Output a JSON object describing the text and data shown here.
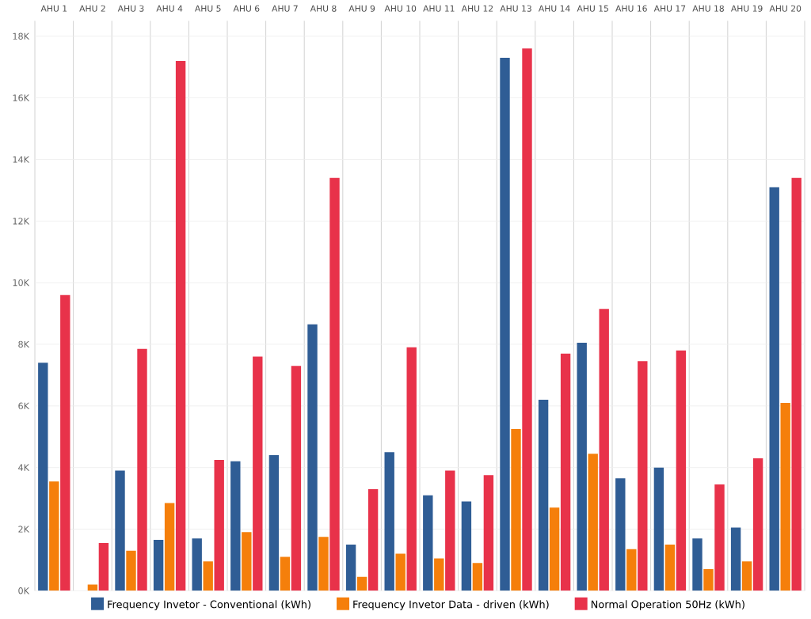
{
  "chart_data": {
    "type": "bar",
    "categories": [
      "AHU 1",
      "AHU 2",
      "AHU 3",
      "AHU 4",
      "AHU 5",
      "AHU 6",
      "AHU 7",
      "AHU 8",
      "AHU 9",
      "AHU 10",
      "AHU 11",
      "AHU 12",
      "AHU 13",
      "AHU 14",
      "AHU 15",
      "AHU 16",
      "AHU 17",
      "AHU 18",
      "AHU 19",
      "AHU 20"
    ],
    "series": [
      {
        "name": "Frequency Invetor - Conventional (kWh)",
        "color": "#2f5d95",
        "values": [
          7400,
          null,
          3900,
          1650,
          1700,
          4200,
          4400,
          8650,
          1500,
          4500,
          3100,
          2900,
          17300,
          6200,
          8050,
          3650,
          4000,
          1700,
          2050,
          13100
        ]
      },
      {
        "name": "Frequency Invetor Data - driven (kWh)",
        "color": "#f57f0b",
        "values": [
          3550,
          200,
          1300,
          2850,
          950,
          1900,
          1100,
          1750,
          450,
          1200,
          1050,
          900,
          5250,
          2700,
          4450,
          1350,
          1500,
          700,
          950,
          6100
        ]
      },
      {
        "name": "Normal Operation 50Hz (kWh)",
        "color": "#e8324a",
        "values": [
          9600,
          1550,
          7850,
          17200,
          4250,
          7600,
          7300,
          13400,
          3300,
          7900,
          3900,
          3750,
          17600,
          7700,
          9150,
          7450,
          7800,
          3450,
          4300,
          13400
        ]
      }
    ],
    "ylim": [
      0,
      18500
    ],
    "yticks": [
      {
        "value": 0,
        "label": "0K"
      },
      {
        "value": 2000,
        "label": "2K"
      },
      {
        "value": 4000,
        "label": "4K"
      },
      {
        "value": 6000,
        "label": "6K"
      },
      {
        "value": 8000,
        "label": "8K"
      },
      {
        "value": 10000,
        "label": "10K"
      },
      {
        "value": 12000,
        "label": "12K"
      },
      {
        "value": 14000,
        "label": "14K"
      },
      {
        "value": 16000,
        "label": "16K"
      },
      {
        "value": 18000,
        "label": "18K"
      }
    ],
    "grid": "y",
    "legend": "bottom"
  }
}
